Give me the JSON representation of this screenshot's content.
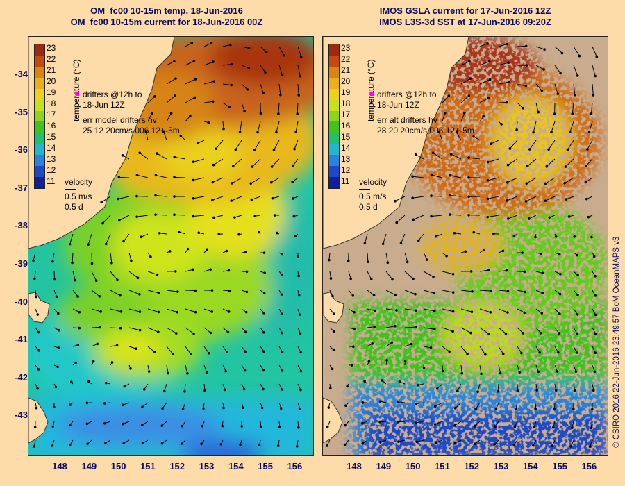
{
  "left_panel": {
    "title_line1": "OM_fc00 10-15m temp. 18-Jun-2016",
    "title_line2": "OM_fc00 10-15m current for 18-Jun-2016 00Z",
    "drifters_line1": "drifters @12h to",
    "drifters_line2": "18-Jun 12Z",
    "err_line1": "err model drifters hv",
    "err_line2": "25 12 20cm/s 006 12+-5m"
  },
  "right_panel": {
    "title_line1": "IMOS GSLA current for 17-Jun-2016 12Z",
    "title_line2": "IMOS L3S-3d SST at 17-Jun-2016 09:20Z",
    "drifters_line1": "drifters @12h to",
    "drifters_line2": "18-Jun 12Z",
    "err_line1": "err alt drifters hv",
    "err_line2": "28 20 20cm/s 006 12+-5m"
  },
  "velocity_legend": {
    "label": "velocity",
    "speed": "0.5 m/s",
    "duration": "0.5 d"
  },
  "colorbar": {
    "unit_label": "temperature (°C)",
    "ticks": [
      "23",
      "22",
      "21",
      "20",
      "19",
      "18",
      "17",
      "16",
      "15",
      "14",
      "13",
      "12",
      "11"
    ],
    "colors": [
      "#9a2a12",
      "#c44a10",
      "#dc8410",
      "#eab01c",
      "#eed21a",
      "#c8e01a",
      "#8fd41c",
      "#3ec41a",
      "#1fbf76",
      "#22b6cc",
      "#2a82e0",
      "#1d48c8",
      "#10209a"
    ]
  },
  "axes": {
    "y_ticks": [
      "-34",
      "-35",
      "-36",
      "-37",
      "-38",
      "-39",
      "-40",
      "-41",
      "-42",
      "-43"
    ],
    "x_ticks": [
      "148",
      "149",
      "150",
      "151",
      "152",
      "153",
      "154",
      "155",
      "156"
    ]
  },
  "credit": "© CSIRO 2016  22-Jun-2016 23:49:57 BoM OceanMAPS v3",
  "colors": {
    "land": "#fddcaa",
    "no_data": "#c9ac8e",
    "text": "#0a0a5a"
  }
}
